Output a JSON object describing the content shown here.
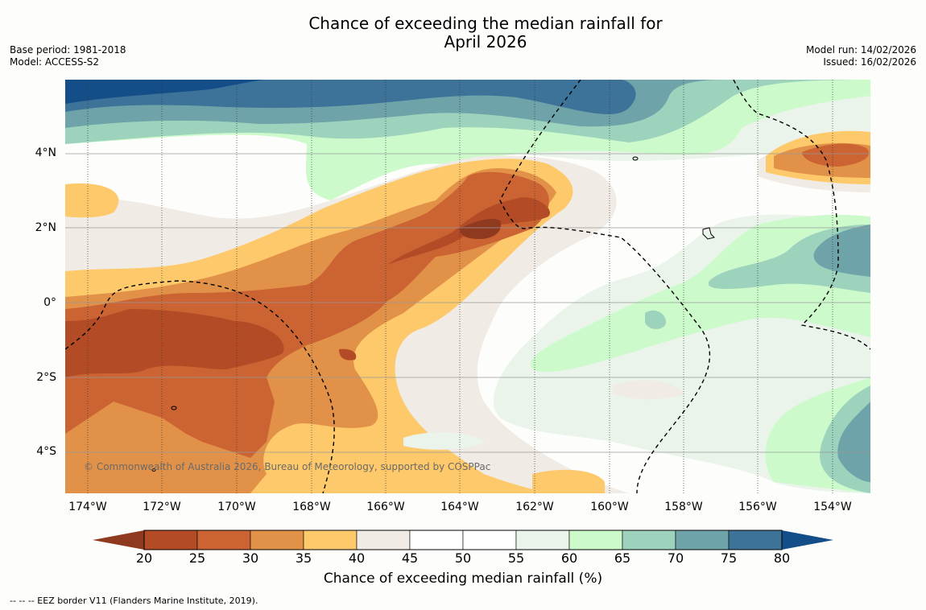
{
  "title": {
    "line1": "Chance of exceeding the median rainfall for",
    "line2": "April 2026"
  },
  "meta": {
    "base_period": "Base period: 1981-2018",
    "model": "Model: ACCESS-S2",
    "model_run": "Model run: 14/02/2026",
    "issued": "Issued: 16/02/2026"
  },
  "map": {
    "lat_labels": [
      "4°N",
      "2°N",
      "0°",
      "2°S",
      "4°S"
    ],
    "lon_labels": [
      "174°W",
      "172°W",
      "170°W",
      "168°W",
      "166°W",
      "164°W",
      "162°W",
      "160°W",
      "158°W",
      "156°W",
      "154°W"
    ],
    "copyright": "© Commonwealth of Australia 2026, Bureau of Meteorology, supported by COSPPac"
  },
  "colorbar": {
    "ticks": [
      "20",
      "25",
      "30",
      "35",
      "40",
      "45",
      "50",
      "55",
      "60",
      "65",
      "70",
      "75",
      "80"
    ],
    "colors": [
      "#8f3a1e",
      "#b34b26",
      "#cb6332",
      "#e29248",
      "#fdc96b",
      "#f1ebe5",
      "#ffffff",
      "#ffffff",
      "#eaf4ea",
      "#ccfacb",
      "#9dd3bd",
      "#6ea4a9",
      "#3d7399",
      "#144e88"
    ],
    "label": "Chance of exceeding median rainfall (%)"
  },
  "footnote": "--  --  -- EEZ border V11 (Flanders Marine Institute, 2019)."
}
